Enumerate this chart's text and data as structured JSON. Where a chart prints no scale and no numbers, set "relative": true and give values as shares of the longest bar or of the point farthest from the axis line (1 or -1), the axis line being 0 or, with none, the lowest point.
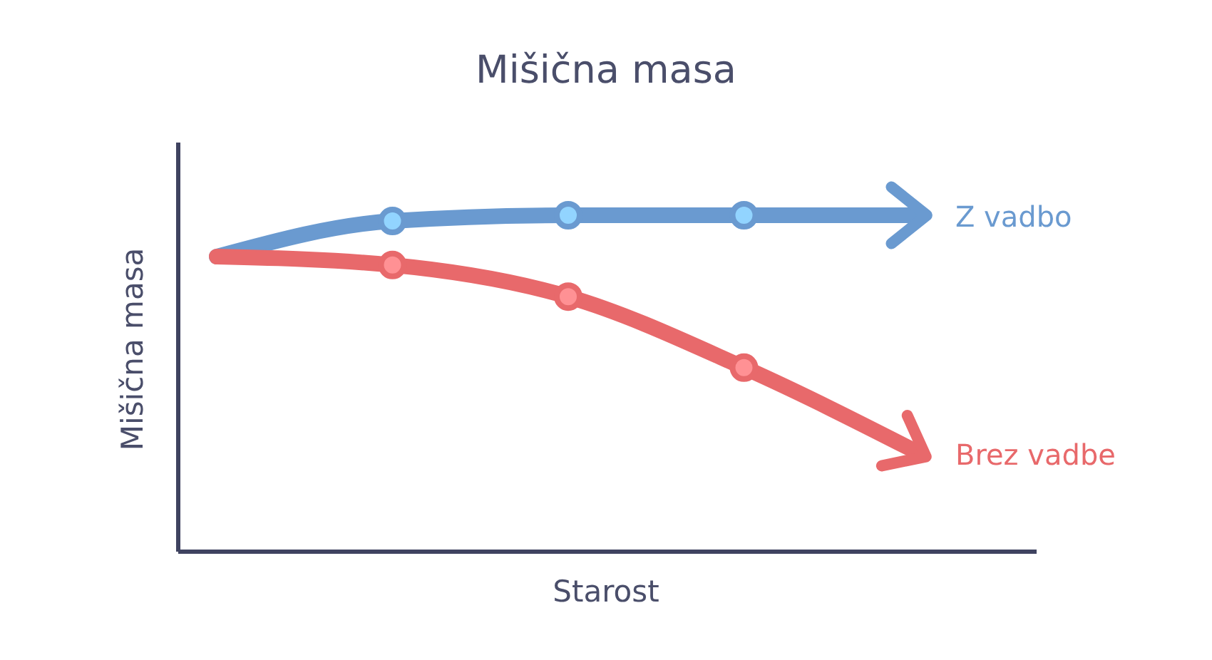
{
  "chart_data": {
    "type": "line",
    "title": "Mišična masa",
    "xlabel": "Starost",
    "ylabel": "Mišična masa",
    "relative": true,
    "marker": "circle",
    "line_style": "solid",
    "grid": false,
    "legend": false,
    "categories": [
      null,
      null,
      null,
      null,
      null
    ],
    "series": [
      {
        "name": "Z vadbo",
        "color": "#6a9ad0",
        "values": [
          0.877,
          0.983,
          1,
          1,
          1
        ]
      },
      {
        "name": "Brez vadbe",
        "color": "#e8696b",
        "values": [
          0.877,
          0.852,
          0.758,
          0.547,
          0.292
        ]
      }
    ]
  }
}
